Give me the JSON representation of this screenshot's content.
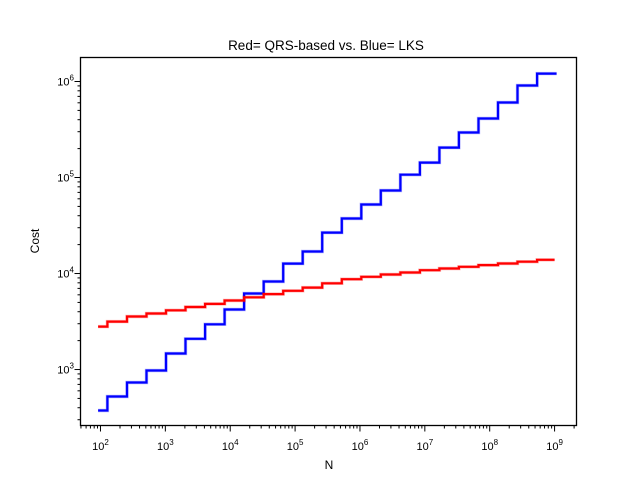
{
  "window": {
    "background": "#ffffff"
  },
  "chart_data": {
    "type": "line",
    "style": "log-log staircase (step) plot, no grid, black box axes, ticks outside",
    "title": "Red= QRS-based vs. Blue= LKS",
    "xlabel": "N",
    "ylabel": "Cost",
    "grid": false,
    "legend_position": "none (legend encoded in title: Red= QRS-based, Blue= LKS)",
    "axes": {
      "x_scale": "log10",
      "y_scale": "log10",
      "tick_label_base": "10",
      "x_tick_exponents": [
        2,
        3,
        4,
        5,
        6,
        7,
        8,
        9
      ],
      "y_tick_exponents": [
        3,
        4,
        5,
        6
      ],
      "xlim_log": [
        1.692,
        9.338
      ],
      "ylim_log": [
        2.417,
        6.25
      ],
      "minor_ticks": true,
      "axis_color": "#000000"
    },
    "series": [
      {
        "name": "LKS",
        "title_key": "Blue",
        "color": "#0000ff",
        "halo_color": "#0000ff",
        "x_start": 92,
        "x_end": 1073741824,
        "step_breaks": [
          128,
          256,
          512,
          1024,
          2048,
          4096,
          8192,
          16384,
          32768,
          65536,
          131072,
          262144,
          524288,
          1048576,
          2097152,
          4194304,
          8388608,
          16777216,
          33554432,
          67108864,
          134217728,
          268435456,
          536870912
        ],
        "values": [
          374,
          524,
          733,
          977,
          1470,
          2090,
          2960,
          4220,
          6190,
          8250,
          12700,
          16950,
          26700,
          37400,
          52300,
          73200,
          107000,
          143000,
          205000,
          294000,
          412000,
          604000,
          908000,
          1210000
        ]
      },
      {
        "name": "QRS-based",
        "title_key": "Red",
        "color": "#ff0000",
        "halo_color": "#ff0000",
        "x_start": 92,
        "x_end": 1000000000,
        "step_breaks": [
          128,
          256,
          512,
          1024,
          2048,
          4096,
          8192,
          16384,
          32768,
          65536,
          131072,
          262144,
          524288,
          1048576,
          2097152,
          4194304,
          8388608,
          16777216,
          33554432,
          67108864,
          134217728,
          268435456,
          536870912
        ],
        "values": [
          2800,
          3160,
          3570,
          3830,
          4140,
          4480,
          4830,
          5230,
          5650,
          6110,
          6610,
          7140,
          7910,
          8720,
          9240,
          9760,
          10240,
          10820,
          11270,
          11750,
          12230,
          12710,
          13270,
          13890
        ]
      }
    ]
  }
}
